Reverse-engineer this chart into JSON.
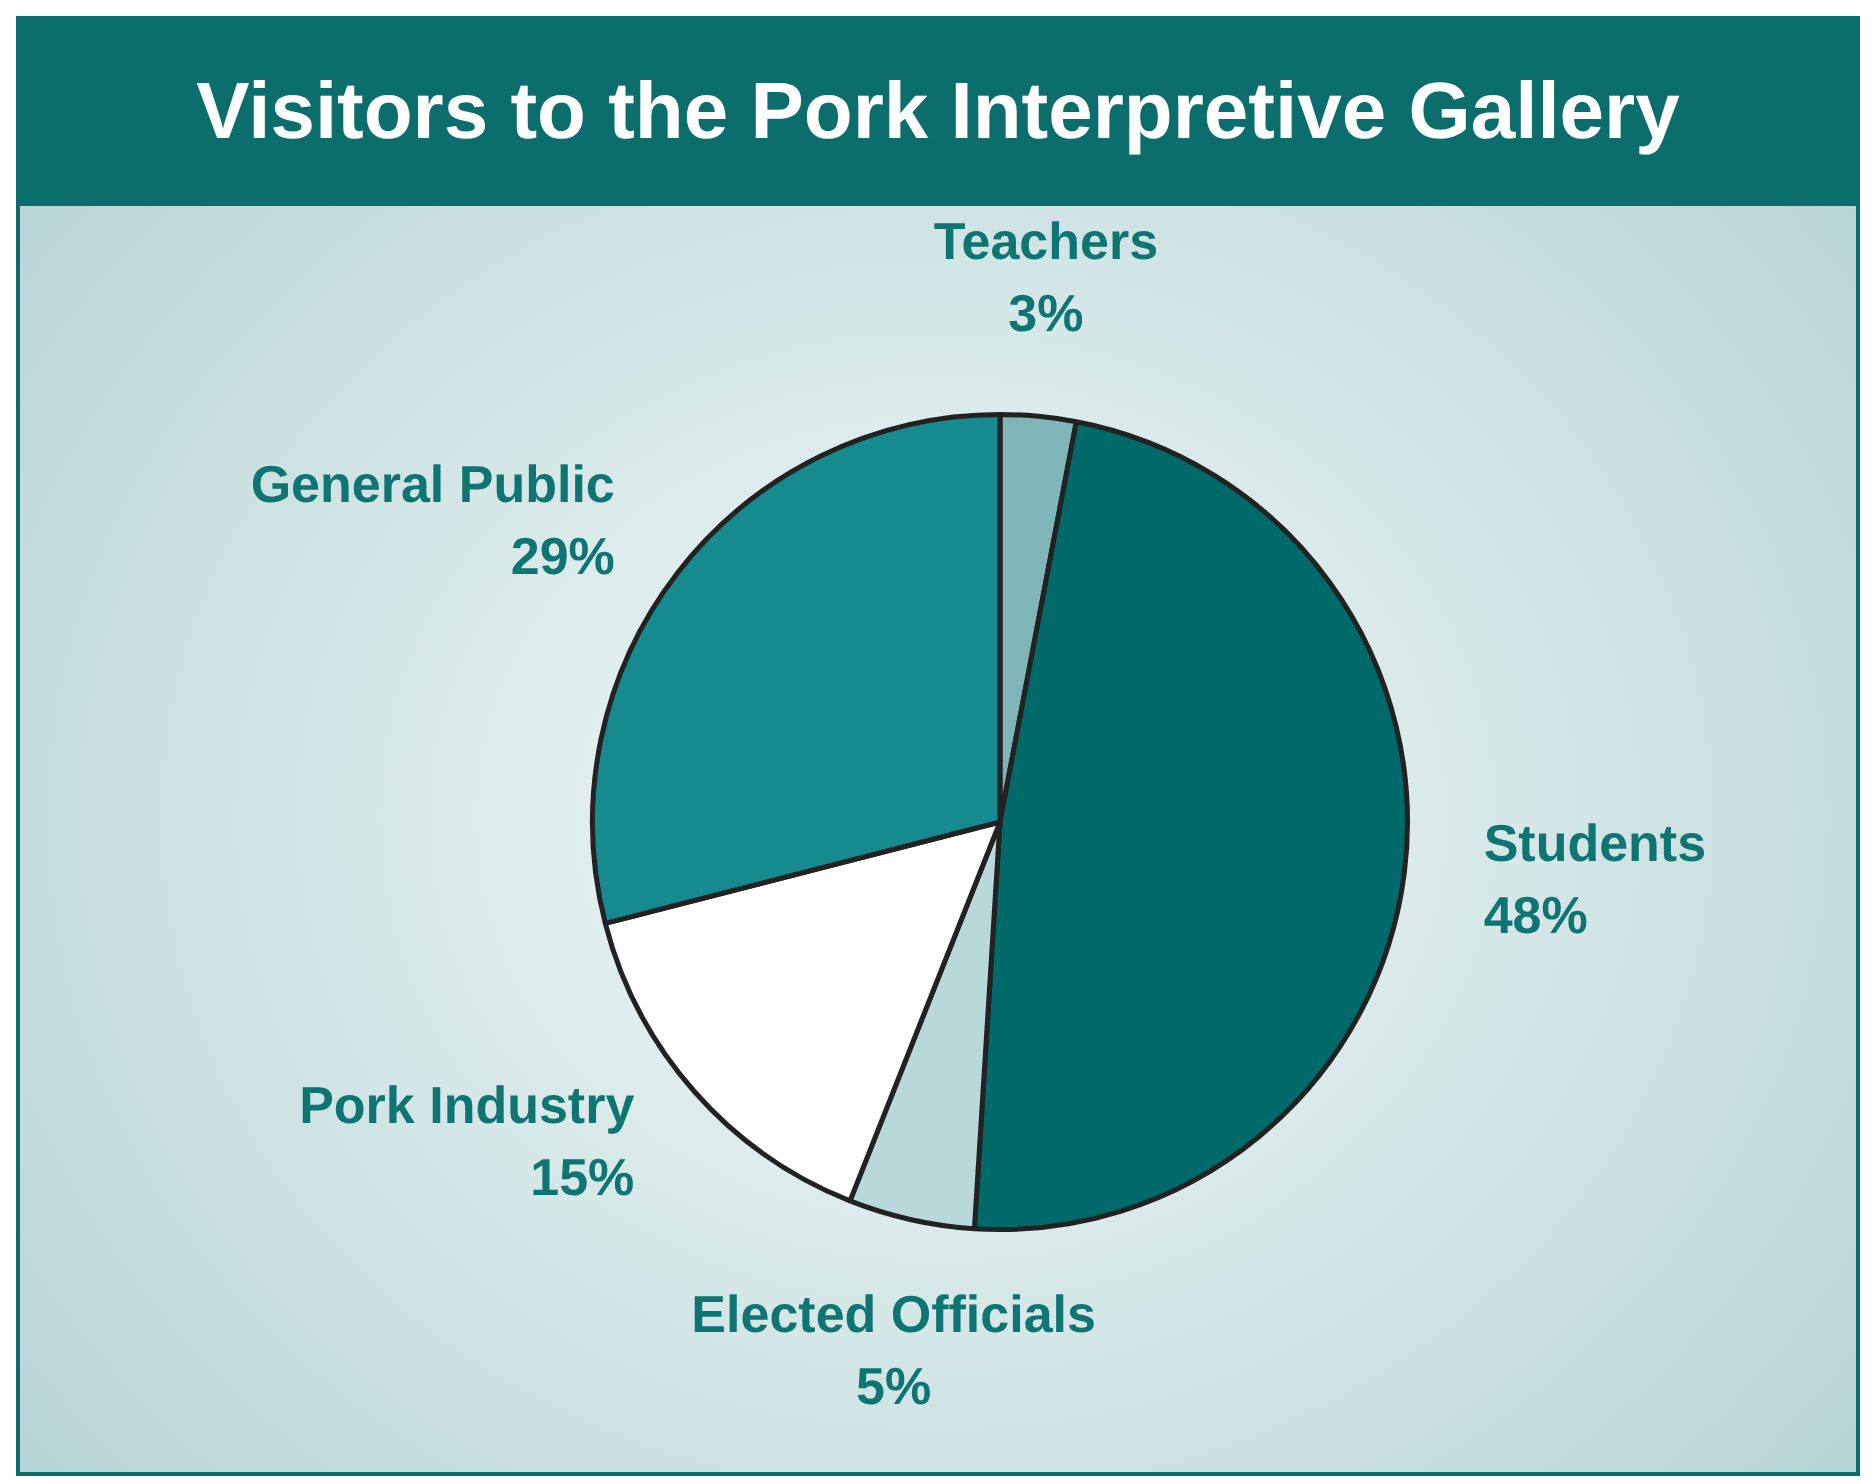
{
  "chart_data": {
    "type": "pie",
    "title": "Visitors to the Pork Interpretive Gallery",
    "categories": [
      "Teachers",
      "Students",
      "Elected Officials",
      "Pork Industry",
      "General Public"
    ],
    "values": [
      3,
      48,
      5,
      15,
      29
    ],
    "value_labels": [
      "3%",
      "48%",
      "5%",
      "15%",
      "29%"
    ],
    "colors": [
      "#7fb5b8",
      "#006a6b",
      "#b9d8da",
      "#ffffff",
      "#158a8f"
    ],
    "legend": false
  }
}
